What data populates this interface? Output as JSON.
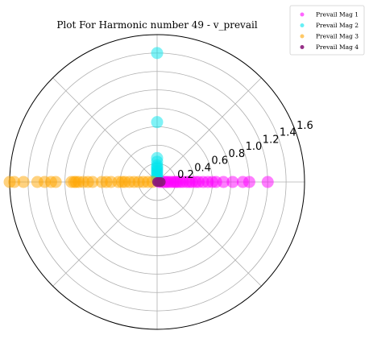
{
  "chart_data": {
    "type": "scatter",
    "projection": "polar",
    "title": "Plot For Harmonic number 49 - v_prevail",
    "r_ticks": [
      "0.2",
      "0.4",
      "0.6",
      "0.8",
      "1.0",
      "1.2",
      "1.4",
      "1.6"
    ],
    "r_tick_values": [
      0.2,
      0.4,
      0.6,
      0.8,
      1.0,
      1.2,
      1.4,
      1.6
    ],
    "rlim": [
      0,
      1.6
    ],
    "angular_gridlines_deg": [
      0,
      45,
      90,
      135,
      180,
      225,
      270,
      315
    ],
    "grid": true,
    "legend_position": "top-right",
    "series": [
      {
        "name": "Prevail Mag 1",
        "color": "#ff00ff",
        "angle_deg": 0,
        "r": [
          0.02,
          0.05,
          0.08,
          0.1,
          0.12,
          0.15,
          0.18,
          0.2,
          0.22,
          0.25,
          0.28,
          0.32,
          0.35,
          0.38,
          0.42,
          0.45,
          0.5,
          0.55,
          0.6,
          0.64,
          0.72,
          0.82,
          0.93,
          1.0,
          1.2
        ]
      },
      {
        "name": "Prevail Mag 2",
        "color": "#00e5ee",
        "angle_deg": 90,
        "r": [
          0.02,
          0.04,
          0.06,
          0.08,
          0.1,
          0.12,
          0.14,
          0.16,
          0.18,
          0.22,
          0.26,
          0.65,
          1.4
        ]
      },
      {
        "name": "Prevail Mag 3",
        "color": "#ffa500",
        "angle_deg": 180,
        "r": [
          0.05,
          0.1,
          0.15,
          0.2,
          0.25,
          0.3,
          0.35,
          0.38,
          0.42,
          0.5,
          0.55,
          0.6,
          0.7,
          0.75,
          0.8,
          0.85,
          0.88,
          0.9,
          0.93,
          1.1,
          1.15,
          1.22,
          1.3,
          1.45,
          1.55,
          1.6
        ]
      },
      {
        "name": "Prevail Mag 4",
        "color": "#8b1a7a",
        "angle_deg": 0,
        "r": [
          0.0,
          0.02,
          0.04
        ]
      }
    ]
  }
}
